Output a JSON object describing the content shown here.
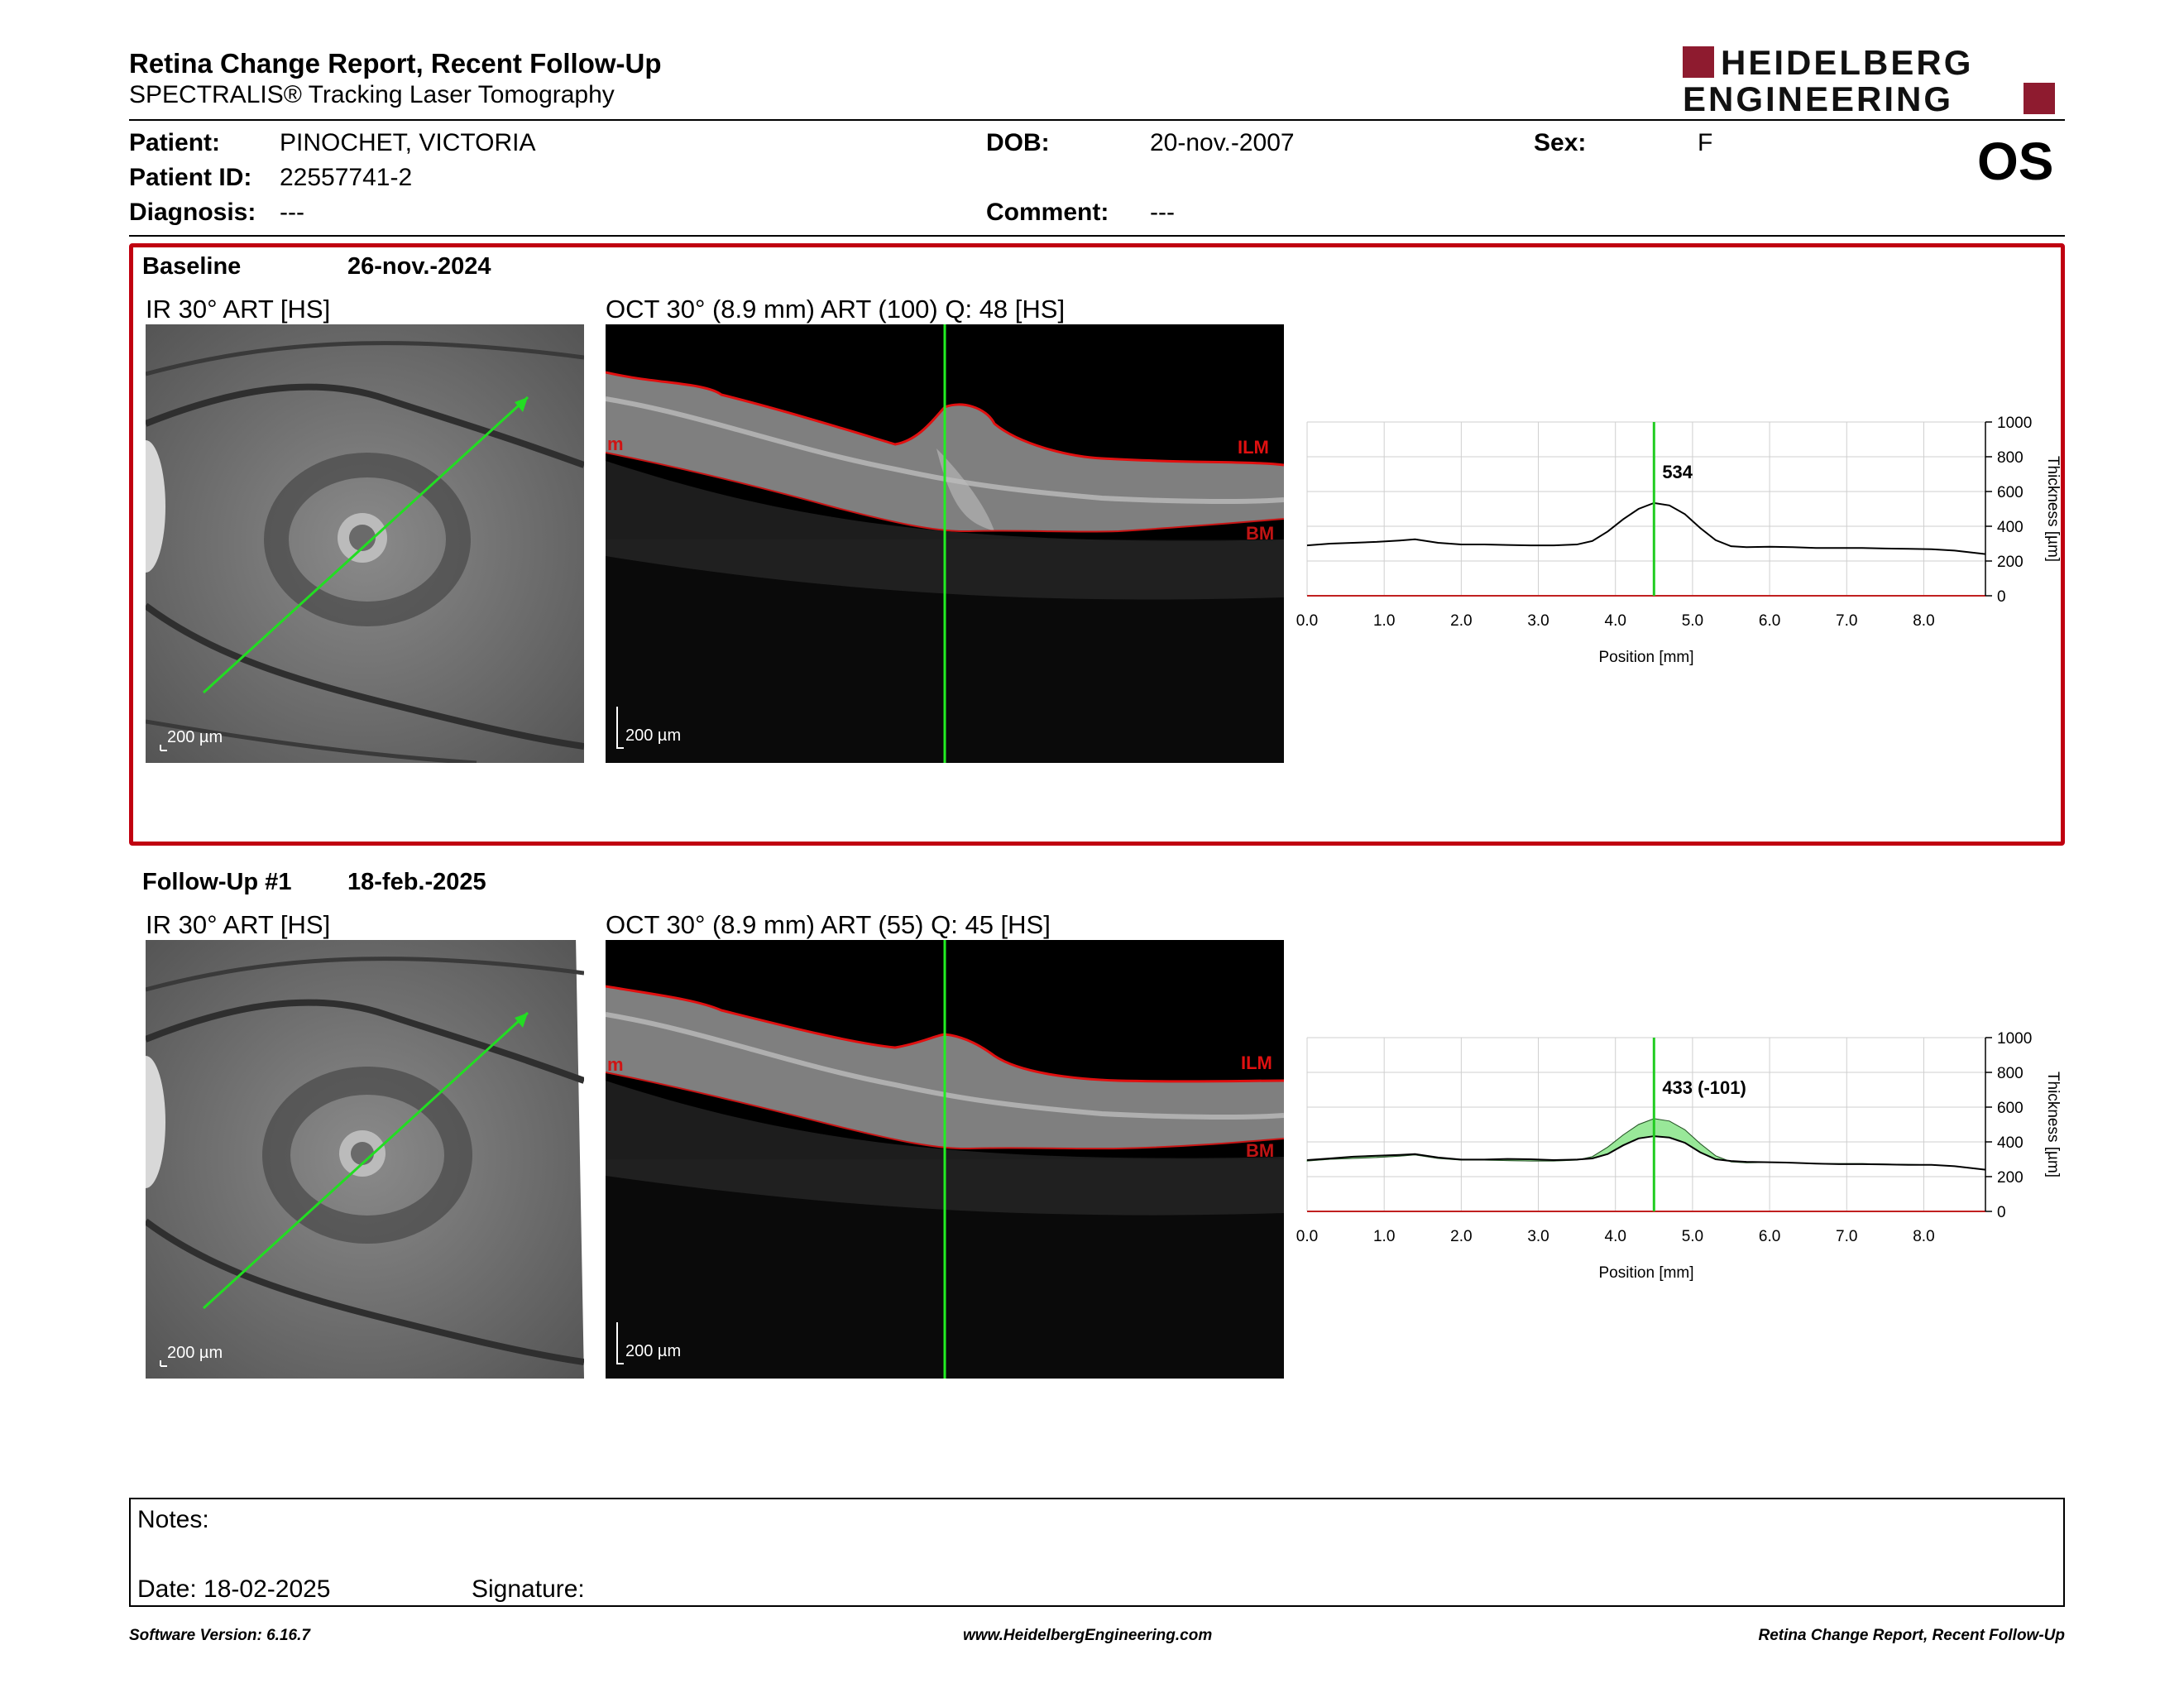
{
  "header": {
    "title": "Retina Change Report, Recent Follow-Up",
    "subtitle": "SPECTRALIS® Tracking Laser Tomography",
    "logo_line1": "HEIDELBERG",
    "logo_line2": "ENGINEERING",
    "eye": "OS"
  },
  "patient": {
    "patient_label": "Patient:",
    "patient_value": "PINOCHET, VICTORIA",
    "id_label": "Patient ID:",
    "id_value": "22557741-2",
    "diagnosis_label": "Diagnosis:",
    "diagnosis_value": "---",
    "dob_label": "DOB:",
    "dob_value": "20-nov.-2007",
    "comment_label": "Comment:",
    "comment_value": "---",
    "sex_label": "Sex:",
    "sex_value": "F"
  },
  "baseline": {
    "label": "Baseline",
    "date": "26-nov.-2024",
    "ir_caption": "IR 30° ART [HS]",
    "oct_caption": "OCT 30° (8.9 mm) ART (100) Q: 48 [HS]",
    "ir_scale": "200 µm",
    "oct_scale": "200 µm",
    "ilm": "ILM",
    "bm": "BM",
    "edge_mark": "m"
  },
  "followup": {
    "label": "Follow-Up #1",
    "date": "18-feb.-2025",
    "ir_caption": "IR 30° ART [HS]",
    "oct_caption": "OCT 30° (8.9 mm) ART (55) Q: 45 [HS]",
    "ir_scale": "200 µm",
    "oct_scale": "200 µm",
    "ilm": "ILM",
    "bm": "BM",
    "edge_mark": "m"
  },
  "chart_data": [
    {
      "type": "line",
      "xlabel": "Position [mm]",
      "ylabel": "Thickness [µm]",
      "xlim": [
        0,
        8.8
      ],
      "ylim": [
        0,
        1000
      ],
      "xticks": [
        "0.0",
        "1.0",
        "2.0",
        "3.0",
        "4.0",
        "5.0",
        "6.0",
        "7.0",
        "8.0"
      ],
      "yticks": [
        "0",
        "200",
        "400",
        "600",
        "800",
        "1000"
      ],
      "grid": true,
      "cursor_x": 4.5,
      "cursor_label": "534",
      "series": [
        {
          "x": [
            0,
            0.3,
            0.6,
            0.9,
            1.2,
            1.4,
            1.7,
            2.0,
            2.3,
            2.6,
            2.9,
            3.2,
            3.5,
            3.7,
            3.9,
            4.1,
            4.3,
            4.5,
            4.7,
            4.9,
            5.1,
            5.3,
            5.5,
            5.7,
            6.0,
            6.3,
            6.6,
            6.9,
            7.2,
            7.5,
            7.8,
            8.1,
            8.4,
            8.6,
            8.8
          ],
          "y": [
            290,
            300,
            305,
            310,
            318,
            325,
            305,
            295,
            295,
            292,
            290,
            290,
            295,
            315,
            370,
            440,
            500,
            534,
            520,
            470,
            390,
            320,
            285,
            280,
            282,
            280,
            275,
            275,
            275,
            272,
            270,
            268,
            260,
            250,
            240
          ]
        }
      ],
      "line_color": "#000000",
      "cursor_color": "#22cc22"
    },
    {
      "type": "line",
      "xlabel": "Position [mm]",
      "ylabel": "Thickness [µm]",
      "xlim": [
        0,
        8.8
      ],
      "ylim": [
        0,
        1000
      ],
      "xticks": [
        "0.0",
        "1.0",
        "2.0",
        "3.0",
        "4.0",
        "5.0",
        "6.0",
        "7.0",
        "8.0"
      ],
      "yticks": [
        "0",
        "200",
        "400",
        "600",
        "800",
        "1000"
      ],
      "grid": true,
      "cursor_x": 4.5,
      "cursor_label": "433 (-101)",
      "series": [
        {
          "x": [
            0,
            0.3,
            0.6,
            0.9,
            1.2,
            1.4,
            1.7,
            2.0,
            2.3,
            2.6,
            2.9,
            3.2,
            3.5,
            3.7,
            3.9,
            4.1,
            4.3,
            4.5,
            4.7,
            4.9,
            5.1,
            5.3,
            5.5,
            5.7,
            6.0,
            6.3,
            6.6,
            6.9,
            7.2,
            7.5,
            7.8,
            8.1,
            8.4,
            8.6,
            8.8
          ],
          "y": [
            295,
            305,
            315,
            320,
            325,
            330,
            310,
            298,
            298,
            302,
            300,
            295,
            298,
            305,
            330,
            380,
            420,
            433,
            425,
            395,
            340,
            300,
            290,
            285,
            283,
            280,
            275,
            272,
            272,
            270,
            268,
            268,
            260,
            250,
            240
          ]
        },
        {
          "x": [
            0,
            0.3,
            0.6,
            0.9,
            1.2,
            1.4,
            1.7,
            2.0,
            2.3,
            2.6,
            2.9,
            3.2,
            3.5,
            3.7,
            3.9,
            4.1,
            4.3,
            4.5,
            4.7,
            4.9,
            5.1,
            5.3,
            5.5,
            5.7,
            6.0,
            6.3,
            6.6,
            6.9,
            7.2,
            7.5,
            7.8,
            8.1,
            8.4,
            8.6,
            8.8
          ],
          "y": [
            290,
            300,
            305,
            310,
            318,
            325,
            305,
            295,
            295,
            292,
            290,
            290,
            295,
            315,
            370,
            440,
            500,
            534,
            520,
            470,
            390,
            320,
            285,
            280,
            282,
            280,
            275,
            275,
            275,
            272,
            270,
            268,
            260,
            250,
            240
          ]
        }
      ],
      "line_color": "#000000",
      "fill_color": "#8ee68e",
      "cursor_color": "#22cc22"
    }
  ],
  "notes": {
    "label": "Notes:",
    "date_label": "Date: 18-02-2025",
    "signature_label": "Signature:"
  },
  "footer": {
    "software": "Software Version: 6.16.7",
    "website": "www.HeidelbergEngineering.com",
    "report": "Retina Change Report, Recent Follow-Up"
  }
}
